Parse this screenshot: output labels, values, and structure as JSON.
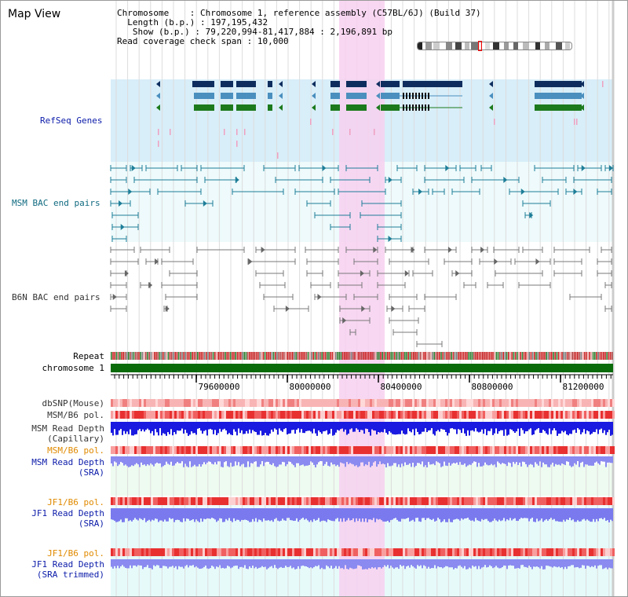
{
  "view_title": "Map View",
  "info": {
    "chromosome_label": "Chromosome",
    "chromosome_value": "Chromosome 1, reference assembly (C57BL/6J) (Build 37)",
    "length_label": "Length (b.p.)",
    "length_value": "197,195,432",
    "show_label": "Show (b.p.)",
    "show_value": "79,220,994-81,417,884 : 2,196,891 bp",
    "coverage_label": "Read coverage check span",
    "coverage_value": "10,000"
  },
  "tracks": {
    "refseq": "RefSeq Genes",
    "msm_bac": "MSM BAC end pairs",
    "b6n_bac": "B6N BAC end pairs",
    "repeat": "Repeat",
    "chromosome": "chromosome 1",
    "dbsnp": "dbSNP(Mouse)",
    "msm_b6_pol_1": "MSM/B6 pol.",
    "msm_depth_cap_1": "MSM Read Depth",
    "msm_depth_cap_2": "(Capillary)",
    "msm_b6_pol_2": "MSM/B6 pol.",
    "msm_depth_sra_1": "MSM Read Depth",
    "msm_depth_sra_2": "(SRA)",
    "jf1_b6_pol_1": "JF1/B6 pol.",
    "jf1_depth_sra_1": "JF1 Read Depth",
    "jf1_depth_sra_2": "(SRA)",
    "jf1_b6_pol_2": "JF1/B6 pol.",
    "jf1_depth_trim_1": "JF1 Read Depth",
    "jf1_depth_trim_2": "(SRA trimmed)"
  },
  "axis_ticks": [
    "79600000",
    "80000000",
    "80400000",
    "80800000",
    "81200000"
  ],
  "colors": {
    "refseq_bg": "#d8eef9",
    "msm_bg": "#eefafb",
    "highlight": "#f7d0f0",
    "gene_dark": "#0e2d5e",
    "gene_mid": "#4a8fbe",
    "gene_green": "#1c7a1c",
    "msm_pair": "#1e7e98",
    "b6n_pair": "#7a7a7a",
    "chromosome_bar": "#0a6b0a",
    "label_blue": "#0a1aa8",
    "label_teal": "#106a80",
    "label_orange": "#e08a00",
    "label_dark": "#333333"
  }
}
